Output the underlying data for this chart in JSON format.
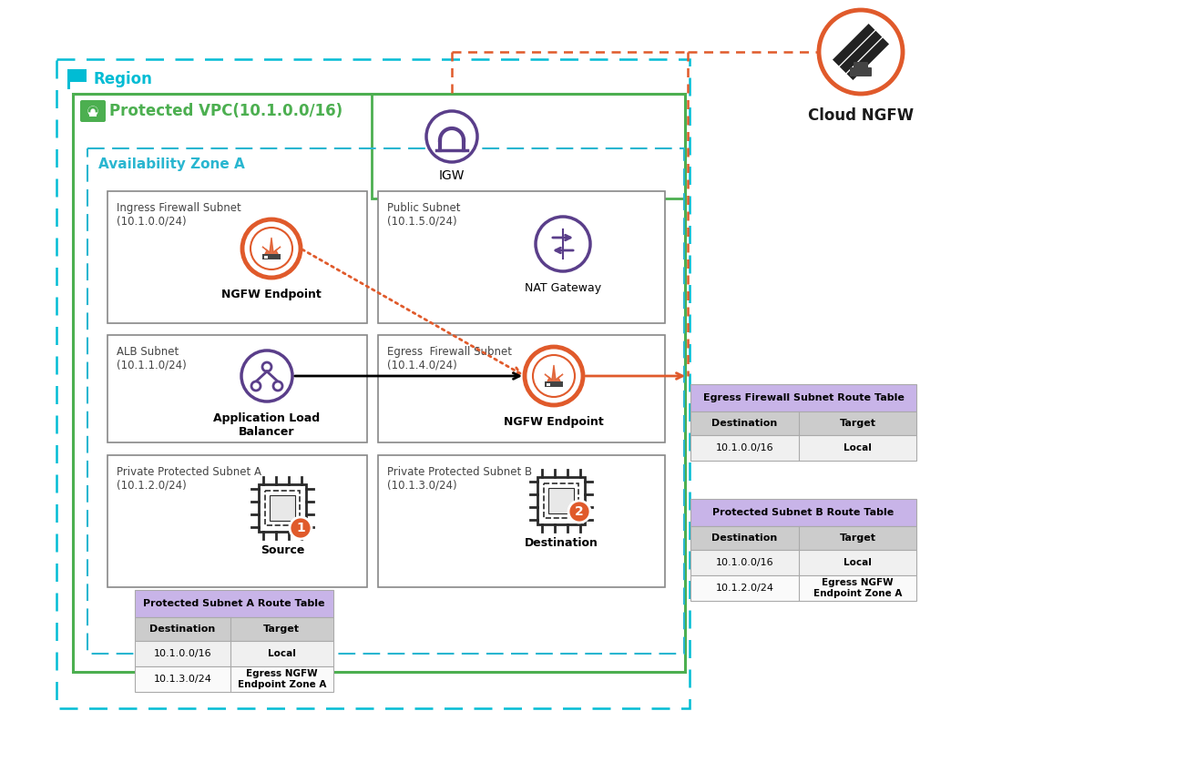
{
  "bg_color": "#ffffff",
  "region_border_color": "#00BCD4",
  "vpc_border_color": "#4CAF50",
  "az_border_color": "#29B6D0",
  "subnet_border_color": "#9E9E9E",
  "table_header_color": "#C8B4E8",
  "table_col_header_color": "#CCCCCC",
  "table_row_alt_color": "#F0F0F0",
  "table_row_color": "#FAFAFA",
  "orange_color": "#E05A2B",
  "purple_color": "#5A3E8A",
  "green_vpc_color": "#4CAF50",
  "black_color": "#1A1A1A",
  "region_label": "Region",
  "vpc_label": "Protected VPC(10.1.0.0/16)",
  "az_label": "Availability Zone A",
  "cloud_ngfw_label": "Cloud NGFW",
  "igw_label": "IGW",
  "nat_label": "NAT Gateway",
  "alb_label": "Application Load\nBalancer",
  "ngfw_endpoint1_label": "NGFW Endpoint",
  "ngfw_endpoint2_label": "NGFW Endpoint",
  "source_label": "Source",
  "destination_label": "Destination",
  "ingress_subnet_label": "Ingress Firewall Subnet\n(10.1.0.0/24)",
  "public_subnet_label": "Public Subnet\n(10.1.5.0/24)",
  "alb_subnet_label": "ALB Subnet\n(10.1.1.0/24)",
  "egress_subnet_label": "Egress  Firewall Subnet\n(10.1.4.0/24)",
  "private_a_label": "Private Protected Subnet A\n(10.1.2.0/24)",
  "private_b_label": "Private Protected Subnet B\n(10.1.3.0/24)",
  "table_a_title": "Protected Subnet A Route Table",
  "table_a_rows": [
    [
      "10.1.0.0/16",
      "Local"
    ],
    [
      "10.1.3.0/24",
      "Egress NGFW\nEndpoint Zone A"
    ]
  ],
  "table_egress_title": "Egress Firewall Subnet Route Table",
  "table_egress_rows": [
    [
      "10.1.0.0/16",
      "Local"
    ]
  ],
  "table_b_title": "Protected Subnet B Route Table",
  "table_b_rows": [
    [
      "10.1.0.0/16",
      "Local"
    ],
    [
      "10.1.2.0/24",
      "Egress NGFW\nEndpoint Zone A"
    ]
  ]
}
